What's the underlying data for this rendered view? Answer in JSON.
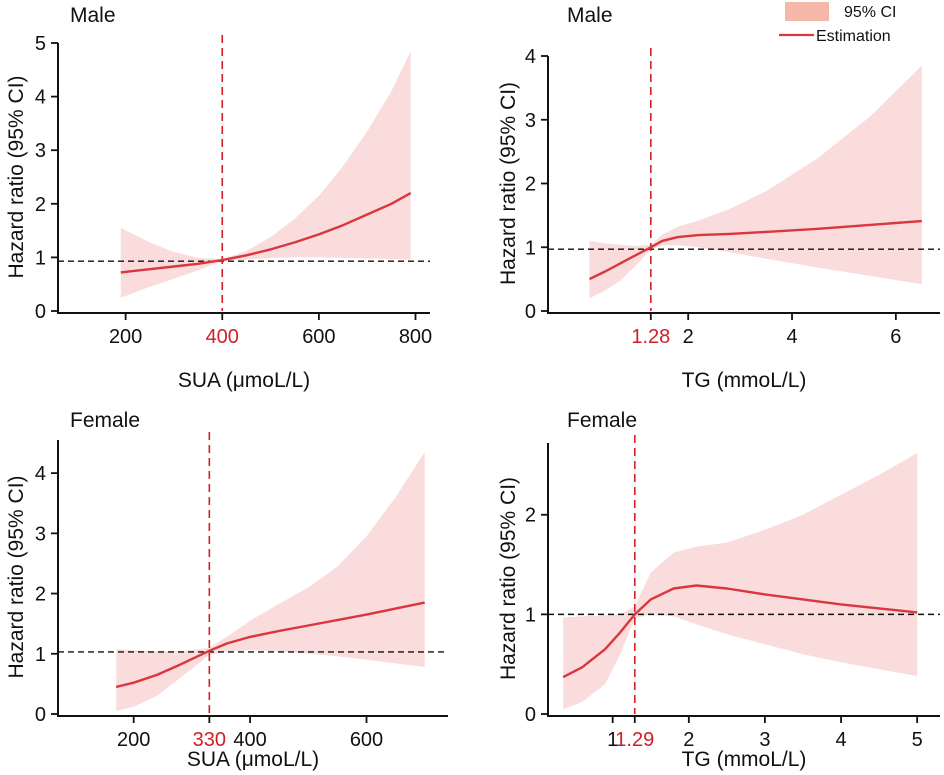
{
  "legend": {
    "ci_label": "95% CI",
    "estimate_label": "Estimation",
    "ci_color": "#f4b8a8",
    "line_color": "#d9363e"
  },
  "colors": {
    "band": "#fbdcdc",
    "line": "#d9363e",
    "cutoff": "#d11f26",
    "reference": "#111111"
  },
  "chart_data": [
    {
      "id": "male-sua",
      "type": "line",
      "title": "Male",
      "xlabel": "SUA (μmoL/L)",
      "ylabel": "Hazard ratio (95% CI)",
      "xlim": [
        60,
        830
      ],
      "ylim": [
        0,
        5
      ],
      "xticks": [
        200,
        600,
        800
      ],
      "yticks": [
        0,
        1,
        2,
        3,
        4,
        5
      ],
      "cutoff": 400,
      "cutoff_label": "400",
      "reference_y": 0.93,
      "series": [
        {
          "name": "Estimation",
          "x": [
            190,
            250,
            300,
            350,
            400,
            450,
            500,
            550,
            600,
            650,
            700,
            750,
            790
          ],
          "y": [
            0.72,
            0.78,
            0.83,
            0.88,
            0.95,
            1.04,
            1.15,
            1.28,
            1.43,
            1.6,
            1.8,
            2.0,
            2.2
          ]
        },
        {
          "name": "95% CI upper",
          "x": [
            190,
            250,
            300,
            350,
            400,
            450,
            500,
            550,
            600,
            650,
            700,
            750,
            790
          ],
          "y": [
            1.55,
            1.28,
            1.1,
            0.99,
            0.97,
            1.12,
            1.38,
            1.72,
            2.15,
            2.7,
            3.35,
            4.1,
            4.85
          ]
        },
        {
          "name": "95% CI lower",
          "x": [
            190,
            250,
            300,
            350,
            400,
            450,
            500,
            550,
            600,
            650,
            700,
            750,
            790
          ],
          "y": [
            0.25,
            0.45,
            0.6,
            0.76,
            0.93,
            0.96,
            0.99,
            1.0,
            1.0,
            0.99,
            0.98,
            0.97,
            0.96
          ]
        }
      ]
    },
    {
      "id": "male-tg",
      "type": "line",
      "title": "Male",
      "xlabel": "TG (mmoL/L)",
      "ylabel": "Hazard ratio (95% CI)",
      "xlim": [
        -0.7,
        6.85
      ],
      "ylim": [
        0,
        4
      ],
      "xticks": [
        2,
        4,
        6
      ],
      "yticks": [
        0,
        1,
        2,
        3,
        4
      ],
      "cutoff": 1.28,
      "cutoff_label": "1.28",
      "reference_y": 0.97,
      "series": [
        {
          "name": "Estimation",
          "x": [
            0.1,
            0.4,
            0.7,
            1.0,
            1.28,
            1.5,
            1.8,
            2.2,
            2.8,
            3.5,
            4.5,
            5.5,
            6.5
          ],
          "y": [
            0.5,
            0.62,
            0.75,
            0.88,
            1.0,
            1.1,
            1.16,
            1.19,
            1.21,
            1.24,
            1.29,
            1.35,
            1.41
          ]
        },
        {
          "name": "95% CI upper",
          "x": [
            0.1,
            0.4,
            0.7,
            1.0,
            1.28,
            1.5,
            1.8,
            2.2,
            2.8,
            3.5,
            4.5,
            5.5,
            6.5
          ],
          "y": [
            1.1,
            1.06,
            1.04,
            1.02,
            1.04,
            1.2,
            1.32,
            1.42,
            1.6,
            1.88,
            2.4,
            3.05,
            3.85
          ]
        },
        {
          "name": "95% CI lower",
          "x": [
            0.1,
            0.4,
            0.7,
            1.0,
            1.28,
            1.5,
            1.8,
            2.2,
            2.8,
            3.5,
            4.5,
            5.5,
            6.5
          ],
          "y": [
            0.2,
            0.32,
            0.48,
            0.72,
            0.97,
            1.03,
            1.03,
            1.0,
            0.92,
            0.82,
            0.68,
            0.55,
            0.42
          ]
        }
      ]
    },
    {
      "id": "female-sua",
      "type": "line",
      "title": "Female",
      "xlabel": "SUA (μmoL/L)",
      "ylabel": "Hazard ratio (95% CI)",
      "xlim": [
        70,
        740
      ],
      "ylim": [
        0,
        4.55
      ],
      "xticks": [
        200,
        400,
        600
      ],
      "yticks": [
        0,
        1,
        2,
        3,
        4
      ],
      "cutoff": 330,
      "cutoff_label": "330",
      "reference_y": 1.03,
      "series": [
        {
          "name": "Estimation",
          "x": [
            170,
            200,
            240,
            280,
            330,
            360,
            400,
            450,
            500,
            550,
            600,
            650,
            700
          ],
          "y": [
            0.45,
            0.52,
            0.65,
            0.82,
            1.05,
            1.17,
            1.28,
            1.38,
            1.47,
            1.56,
            1.65,
            1.75,
            1.85
          ]
        },
        {
          "name": "95% CI upper",
          "x": [
            170,
            200,
            240,
            280,
            330,
            360,
            400,
            450,
            500,
            550,
            600,
            650,
            700
          ],
          "y": [
            1.08,
            1.06,
            1.04,
            1.04,
            1.1,
            1.28,
            1.55,
            1.83,
            2.1,
            2.45,
            2.95,
            3.6,
            4.35
          ]
        },
        {
          "name": "95% CI lower",
          "x": [
            170,
            200,
            240,
            280,
            330,
            360,
            400,
            450,
            500,
            550,
            600,
            650,
            700
          ],
          "y": [
            0.05,
            0.12,
            0.3,
            0.6,
            0.98,
            1.04,
            1.06,
            1.04,
            1.0,
            0.96,
            0.9,
            0.84,
            0.78
          ]
        }
      ]
    },
    {
      "id": "female-tg",
      "type": "line",
      "title": "Female",
      "xlabel": "TG (mmoL/L)",
      "ylabel": "Hazard ratio (95% CI)",
      "xlim": [
        0.15,
        5.3
      ],
      "ylim": [
        0,
        2.72
      ],
      "xticks": [
        1,
        2,
        3,
        4,
        5
      ],
      "yticks": [
        0,
        1,
        2
      ],
      "cutoff": 1.29,
      "cutoff_label": "1.29",
      "reference_y": 1.0,
      "series": [
        {
          "name": "Estimation",
          "x": [
            0.35,
            0.6,
            0.9,
            1.1,
            1.29,
            1.5,
            1.8,
            2.1,
            2.5,
            3.0,
            3.5,
            4.0,
            4.5,
            5.0
          ],
          "y": [
            0.37,
            0.47,
            0.65,
            0.82,
            1.0,
            1.15,
            1.26,
            1.29,
            1.26,
            1.2,
            1.15,
            1.1,
            1.06,
            1.02
          ]
        },
        {
          "name": "95% CI upper",
          "x": [
            0.35,
            0.6,
            0.9,
            1.1,
            1.29,
            1.5,
            1.8,
            2.1,
            2.5,
            3.0,
            3.5,
            4.0,
            4.5,
            5.0
          ],
          "y": [
            0.97,
            0.98,
            0.99,
            1.0,
            1.08,
            1.42,
            1.62,
            1.68,
            1.72,
            1.85,
            2.0,
            2.2,
            2.4,
            2.62
          ]
        },
        {
          "name": "95% CI lower",
          "x": [
            0.35,
            0.6,
            0.9,
            1.1,
            1.29,
            1.5,
            1.8,
            2.1,
            2.5,
            3.0,
            3.5,
            4.0,
            4.5,
            5.0
          ],
          "y": [
            0.05,
            0.12,
            0.3,
            0.6,
            0.96,
            1.0,
            0.98,
            0.9,
            0.8,
            0.7,
            0.6,
            0.52,
            0.45,
            0.38
          ]
        }
      ]
    }
  ]
}
